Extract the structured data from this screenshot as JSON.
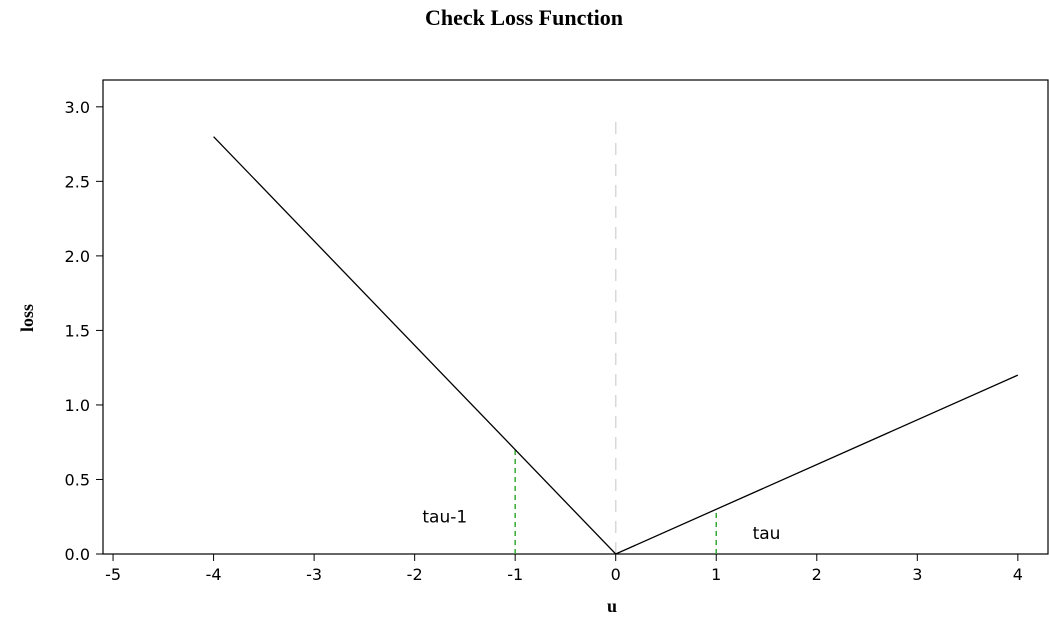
{
  "chart_data": {
    "type": "line",
    "title": "Check Loss Function",
    "xlabel": "u",
    "ylabel": "loss",
    "xlim": [
      -5.1,
      4.3
    ],
    "ylim": [
      0,
      3.18
    ],
    "xticks": [
      -5,
      -4,
      -3,
      -2,
      -1,
      0,
      1,
      2,
      3,
      4
    ],
    "yticks": [
      0.0,
      0.5,
      1.0,
      1.5,
      2.0,
      2.5,
      3.0
    ],
    "xtick_labels": [
      "-5",
      "-4",
      "-3",
      "-2",
      "-1",
      "0",
      "1",
      "2",
      "3",
      "4"
    ],
    "ytick_labels": [
      "0.0",
      "0.5",
      "1.0",
      "1.5",
      "2.0",
      "2.5",
      "3.0"
    ],
    "grid": false,
    "series": [
      {
        "x": [
          -4,
          0,
          4
        ],
        "y": [
          2.8,
          0,
          1.2
        ],
        "color": "#000000"
      }
    ],
    "reference_lines": [
      {
        "orientation": "vertical",
        "x": 0,
        "y_from": 0,
        "y_to": 2.95,
        "color": "#d8d8d8",
        "style": "dashed"
      },
      {
        "orientation": "vertical",
        "x": -1,
        "y_from": 0,
        "y_to": 0.7,
        "color": "#33aa33",
        "style": "dashed"
      },
      {
        "orientation": "vertical",
        "x": 1,
        "y_from": 0,
        "y_to": 0.3,
        "color": "#33aa33",
        "style": "dashed"
      }
    ],
    "annotations": [
      {
        "text": "tau-1",
        "x": -1.7,
        "y": 0.25
      },
      {
        "text": "tau",
        "x": 1.5,
        "y": 0.14
      }
    ]
  }
}
